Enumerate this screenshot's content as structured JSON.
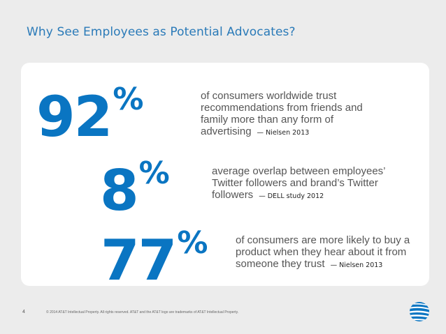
{
  "slide": {
    "title": "Why See Employees as Potential Advocates?",
    "page_number": "4",
    "footer": "© 2014 AT&T Intellectual Property. All rights reserved. AT&T and the AT&T logo are trademarks of AT&T Intellectual Property.",
    "logo_icon": "att-globe-icon"
  },
  "stats": [
    {
      "number": "92",
      "unit": "%",
      "text_lines": [
        "of consumers worldwide trust",
        "recommendations from friends and",
        "family more than any form of",
        "advertising"
      ],
      "source": "— Nielsen 2013"
    },
    {
      "number": "8",
      "unit": "%",
      "text_lines": [
        "average overlap between employees’",
        "Twitter followers and brand’s Twitter",
        "followers"
      ],
      "source": "— DELL study 2012"
    },
    {
      "number": "77",
      "unit": "%",
      "text_lines": [
        "of consumers are more likely to buy a",
        "product when they hear about it from",
        "someone they trust"
      ],
      "source": "— Nielsen 2013"
    }
  ],
  "colors": {
    "accent": "#0a75c2",
    "title": "#2a7ab8",
    "background": "#ececec",
    "panel": "#ffffff"
  }
}
